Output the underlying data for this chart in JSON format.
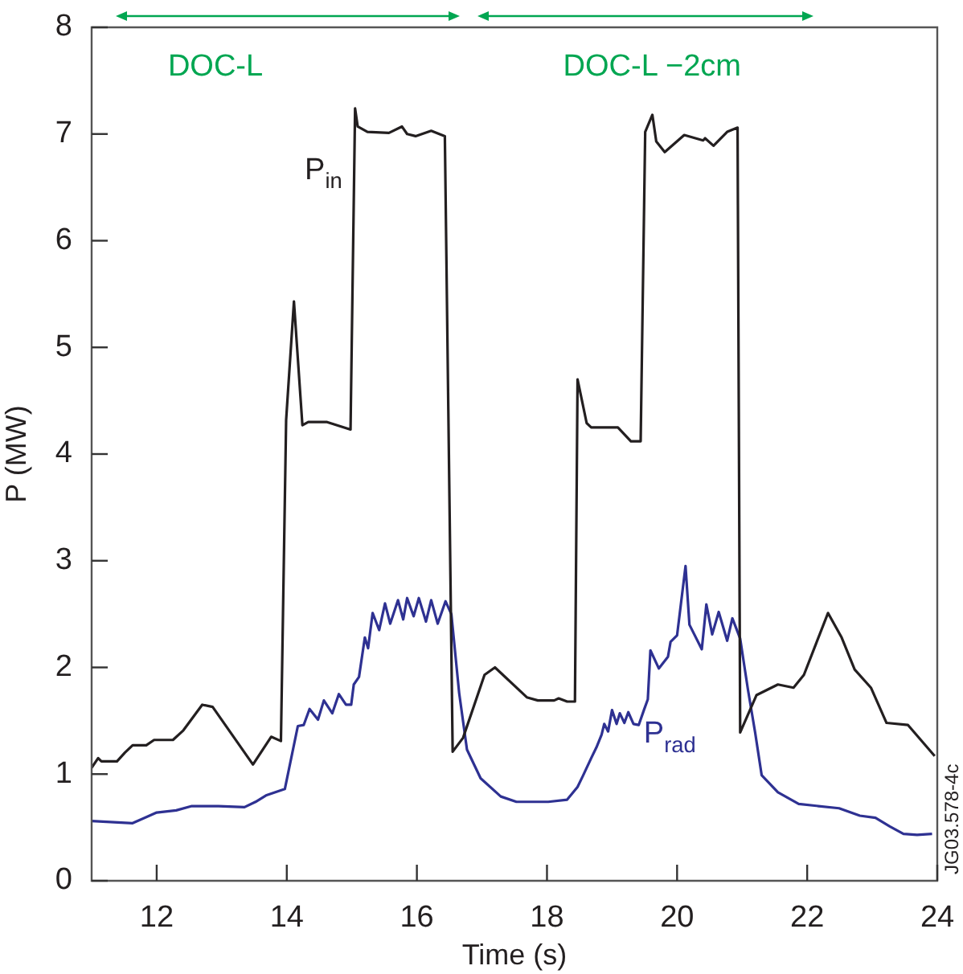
{
  "chart_data": {
    "type": "line",
    "xlabel": "Time (s)",
    "ylabel": "P (MW)",
    "xlim": [
      11,
      24
    ],
    "xticks": [
      12,
      14,
      16,
      18,
      20,
      22,
      24
    ],
    "ylim": [
      0,
      8
    ],
    "yticks": [
      0,
      1,
      2,
      3,
      4,
      5,
      6,
      7,
      8
    ],
    "grid": false,
    "legend": false,
    "marker": "none",
    "line_style": "solid",
    "series": [
      {
        "name": "P$_{in}$",
        "color": "#231f20",
        "x": [
          11,
          11.1,
          11.15,
          11.39,
          11.51,
          11.63,
          11.84,
          11.96,
          12.25,
          12.41,
          12.7,
          12.86,
          13.48,
          13.76,
          13.91,
          13.99,
          14.11,
          14.24,
          14.33,
          14.62,
          14.98,
          15.05,
          15.09,
          15.24,
          15.57,
          15.77,
          15.85,
          15.98,
          16.22,
          16.43,
          16.55,
          16.71,
          17.04,
          17.2,
          17.69,
          17.86,
          18.11,
          18.18,
          18.31,
          18.43,
          18.47,
          18.61,
          18.68,
          19.09,
          19.29,
          19.44,
          19.51,
          19.62,
          19.68,
          19.81,
          20.11,
          20.4,
          20.43,
          20.56,
          20.77,
          20.93,
          20.97,
          21.22,
          21.55,
          21.79,
          21.95,
          22.32,
          22.53,
          22.73,
          22.98,
          23.22,
          23.55,
          23.96
        ],
        "values": [
          1.06,
          1.15,
          1.12,
          1.12,
          1.2,
          1.27,
          1.27,
          1.32,
          1.32,
          1.41,
          1.65,
          1.63,
          1.09,
          1.35,
          1.31,
          4.32,
          5.43,
          4.27,
          4.3,
          4.3,
          4.23,
          7.24,
          7.07,
          7.02,
          7.01,
          7.07,
          7,
          6.98,
          7.03,
          6.98,
          1.21,
          1.34,
          1.93,
          2,
          1.72,
          1.69,
          1.69,
          1.71,
          1.68,
          1.68,
          4.7,
          4.29,
          4.25,
          4.25,
          4.12,
          4.12,
          7.02,
          7.18,
          6.93,
          6.83,
          6.99,
          6.94,
          6.96,
          6.89,
          7.02,
          7.06,
          1.39,
          1.74,
          1.84,
          1.81,
          1.93,
          2.51,
          2.28,
          1.98,
          1.81,
          1.48,
          1.46,
          1.17
        ]
      },
      {
        "name": "P$_{rad}$",
        "color": "#2e3192",
        "x": [
          11,
          11.63,
          12,
          12.3,
          12.54,
          12.95,
          13.35,
          13.52,
          13.68,
          13.97,
          14.17,
          14.26,
          14.35,
          14.48,
          14.57,
          14.7,
          14.8,
          14.91,
          14.99,
          15.03,
          15.11,
          15.2,
          15.25,
          15.32,
          15.42,
          15.51,
          15.59,
          15.71,
          15.79,
          15.85,
          15.95,
          16.03,
          16.14,
          16.22,
          16.32,
          16.44,
          16.53,
          16.65,
          16.77,
          16.98,
          17.29,
          17.53,
          18.02,
          18.31,
          18.47,
          18.55,
          18.68,
          18.76,
          18.84,
          18.88,
          18.94,
          19,
          19.07,
          19.12,
          19.19,
          19.25,
          19.33,
          19.41,
          19.49,
          19.55,
          19.59,
          19.72,
          19.86,
          19.9,
          20,
          20.13,
          20.19,
          20.38,
          20.45,
          20.54,
          20.64,
          20.77,
          20.85,
          20.97,
          21.09,
          21.2,
          21.3,
          21.55,
          21.87,
          22.49,
          22.81,
          23.05,
          23.27,
          23.48,
          23.69,
          23.92
        ],
        "values": [
          0.56,
          0.54,
          0.64,
          0.66,
          0.7,
          0.7,
          0.69,
          0.74,
          0.8,
          0.86,
          1.45,
          1.46,
          1.61,
          1.51,
          1.69,
          1.57,
          1.75,
          1.65,
          1.65,
          1.84,
          1.91,
          2.28,
          2.18,
          2.51,
          2.35,
          2.6,
          2.41,
          2.63,
          2.45,
          2.65,
          2.48,
          2.65,
          2.43,
          2.63,
          2.41,
          2.62,
          2.5,
          1.76,
          1.23,
          0.96,
          0.79,
          0.74,
          0.74,
          0.76,
          0.88,
          0.98,
          1.15,
          1.25,
          1.37,
          1.47,
          1.4,
          1.6,
          1.47,
          1.57,
          1.48,
          1.58,
          1.47,
          1.46,
          1.6,
          1.7,
          2.16,
          1.99,
          2.1,
          2.24,
          2.3,
          2.95,
          2.4,
          2.17,
          2.59,
          2.31,
          2.52,
          2.25,
          2.46,
          2.27,
          1.79,
          1.39,
          0.99,
          0.83,
          0.72,
          0.68,
          0.61,
          0.59,
          0.51,
          0.44,
          0.43,
          0.44
        ]
      }
    ],
    "annotations": [
      "DOC-L",
      "DOC-L −2cm",
      "JG03.578-4c"
    ]
  }
}
